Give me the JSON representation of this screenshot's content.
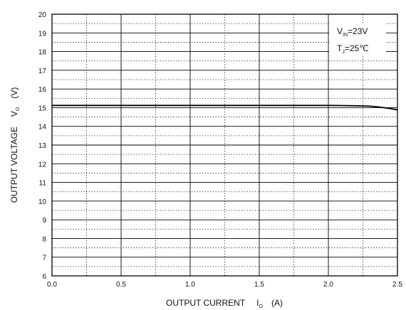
{
  "chart_data": {
    "type": "line",
    "title": "",
    "xlabel": {
      "main": "OUTPUT CURRENT",
      "symbol": "I",
      "sub": "O",
      "unit": "(A)"
    },
    "ylabel": {
      "main": "OUTPUT VOLTAGE",
      "symbol": "V",
      "sub": "O",
      "unit": "(V)"
    },
    "xlim": [
      0,
      2.5
    ],
    "ylim": [
      6,
      20
    ],
    "x_ticks": [
      "0.0",
      "0.5",
      "1.0",
      "1.5",
      "2.0",
      "2.5"
    ],
    "y_ticks": [
      "6",
      "7",
      "8",
      "9",
      "10",
      "11",
      "12",
      "13",
      "14",
      "15",
      "16",
      "17",
      "18",
      "19",
      "20"
    ],
    "grid": true,
    "legend_position": "top-right",
    "conditions": [
      {
        "symbol": "V",
        "sub": "IN",
        "value": "=23V"
      },
      {
        "symbol": "T",
        "sub": "J",
        "value": "=25℃"
      }
    ],
    "series": [
      {
        "x": [
          0.0,
          0.5,
          1.0,
          1.5,
          2.0,
          2.1,
          2.2,
          2.3,
          2.35,
          2.4,
          2.45,
          2.5
        ],
        "y": [
          15.12,
          15.12,
          15.12,
          15.12,
          15.12,
          15.11,
          15.1,
          15.08,
          15.05,
          15.0,
          14.95,
          14.88
        ],
        "color": "#000000"
      }
    ]
  }
}
